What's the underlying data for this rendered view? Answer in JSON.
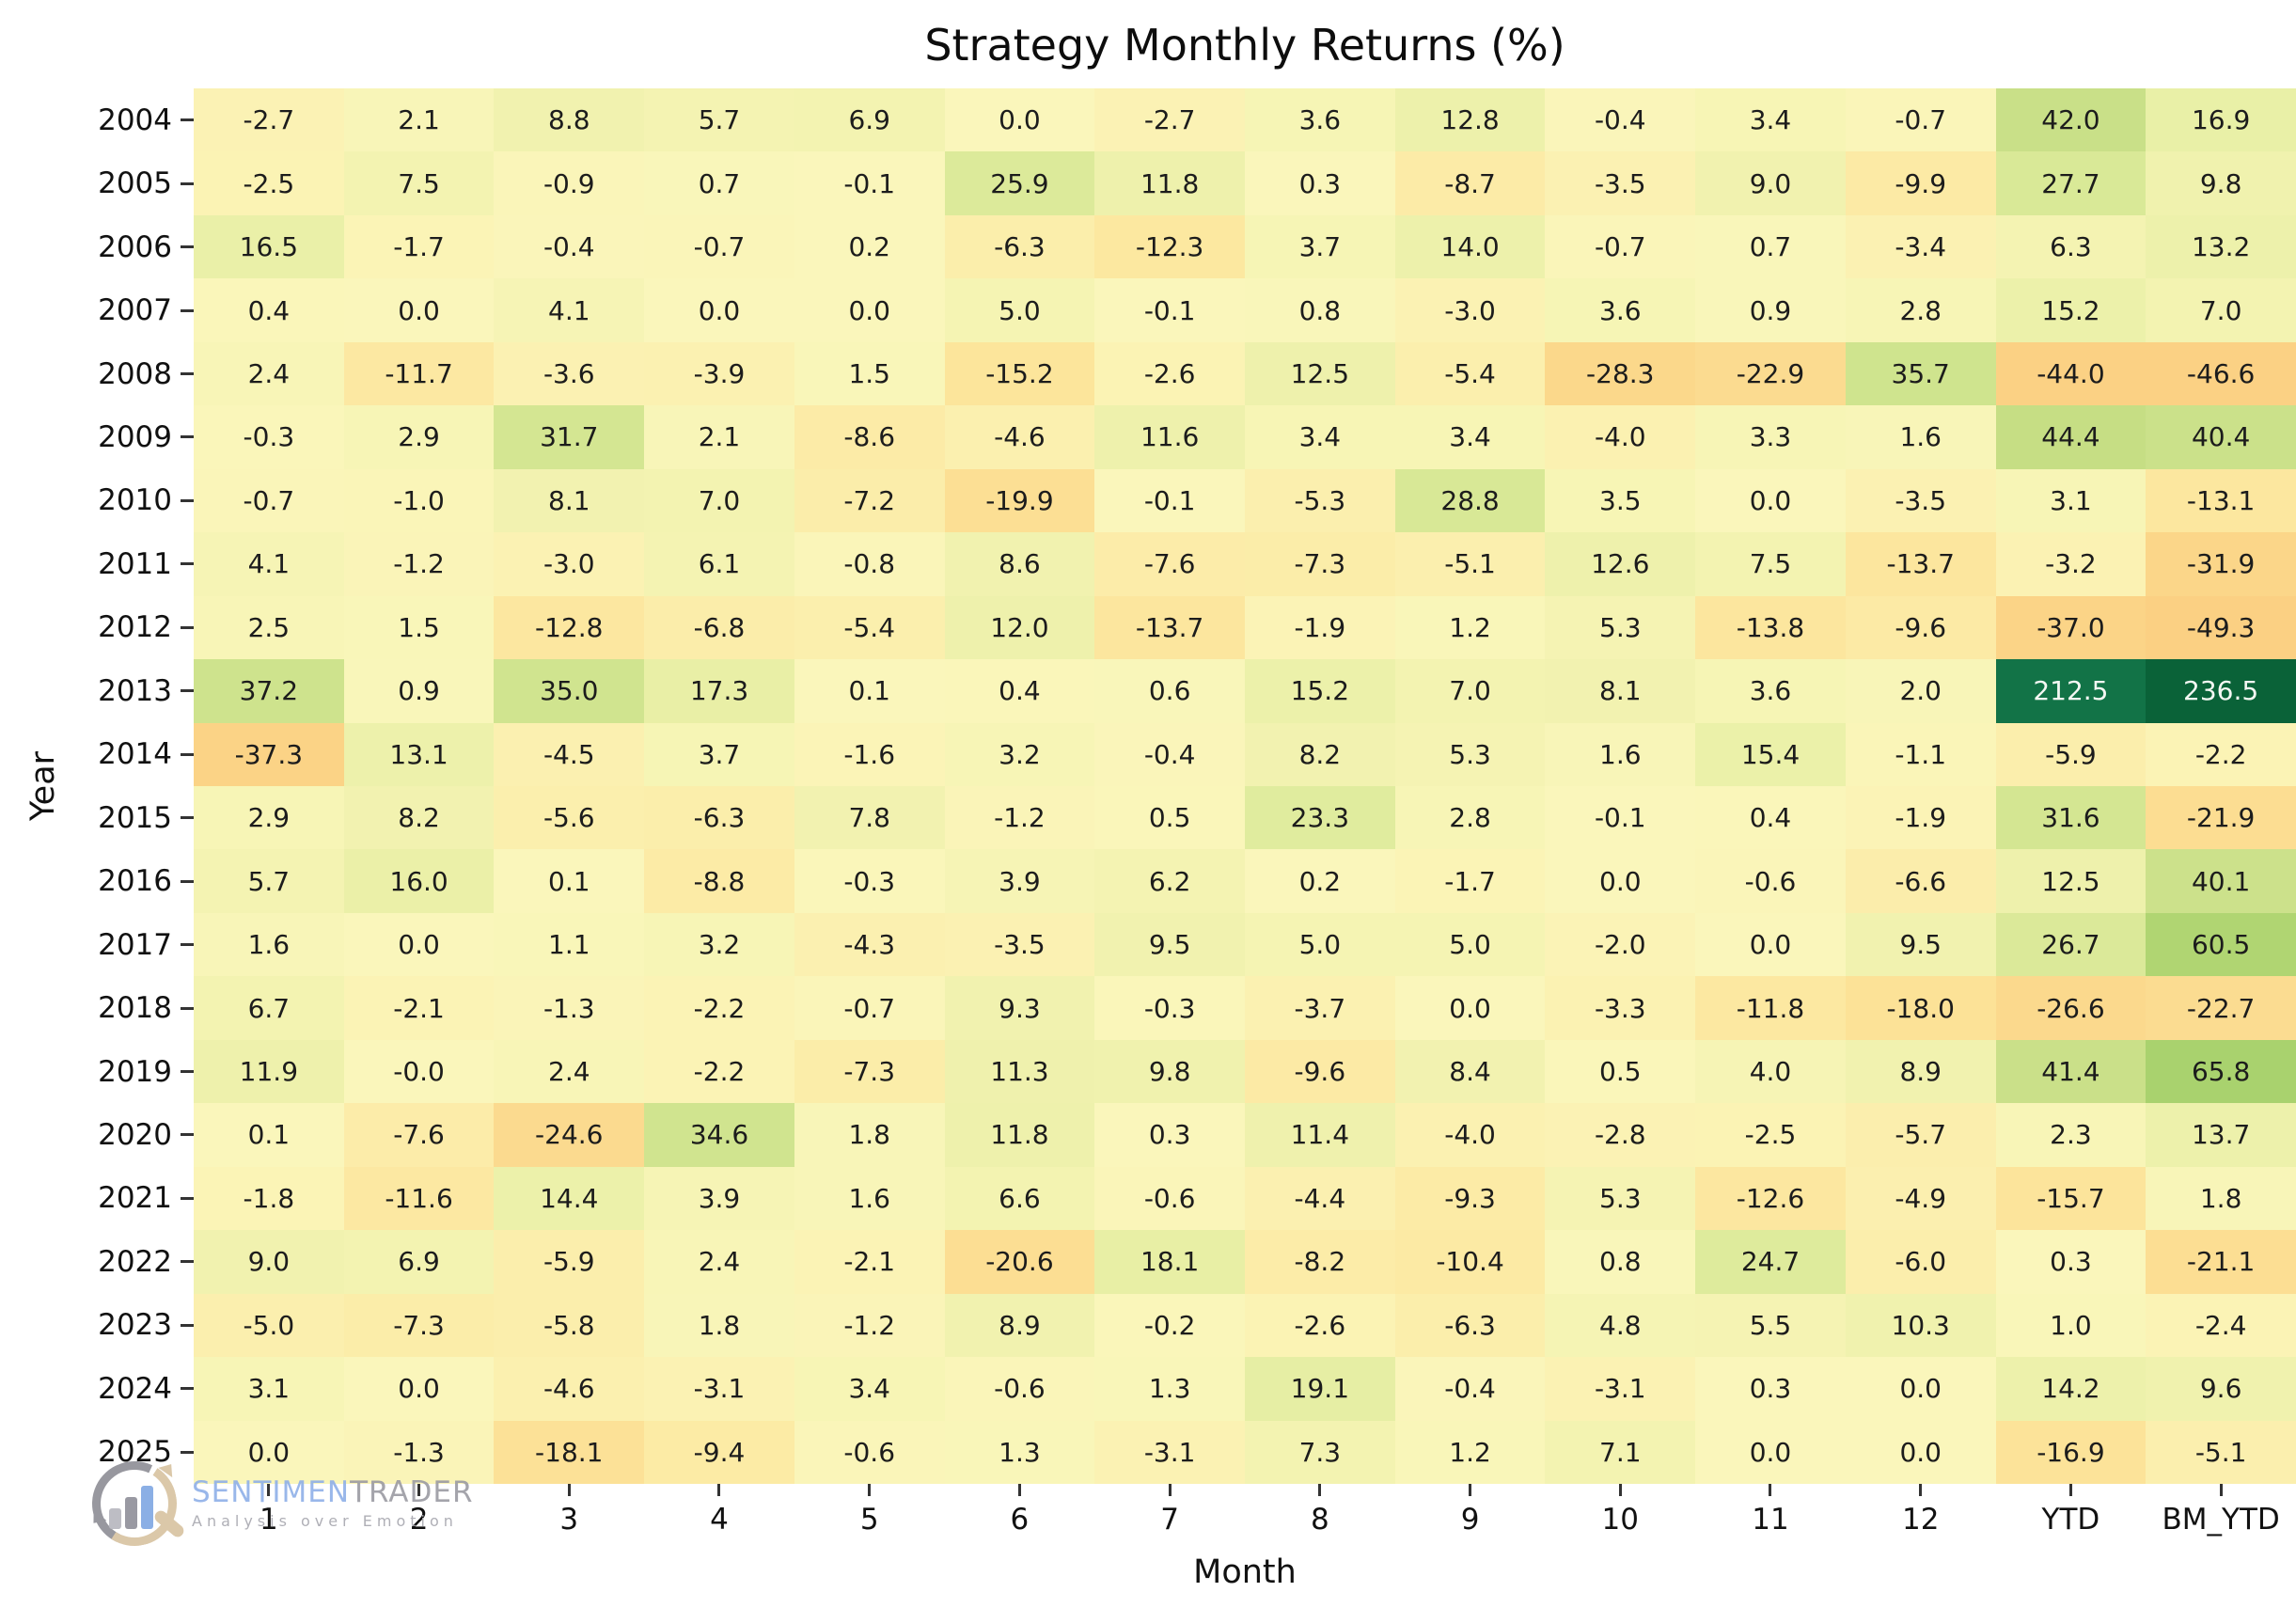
{
  "page": {
    "background": "#ffffff"
  },
  "chart_data": {
    "type": "heatmap",
    "title": "Strategy Monthly Returns (%)",
    "xlabel": "Month",
    "ylabel": "Year",
    "legend_position": "none",
    "grid": false,
    "columns": [
      "1",
      "2",
      "3",
      "4",
      "5",
      "6",
      "7",
      "8",
      "9",
      "10",
      "11",
      "12",
      "YTD",
      "BM_YTD"
    ],
    "years": [
      "2004",
      "2005",
      "2006",
      "2007",
      "2008",
      "2009",
      "2010",
      "2011",
      "2012",
      "2013",
      "2014",
      "2015",
      "2016",
      "2017",
      "2018",
      "2019",
      "2020",
      "2021",
      "2022",
      "2023",
      "2024",
      "2025"
    ],
    "values": [
      [
        "-2.7",
        "2.1",
        "8.8",
        "5.7",
        "6.9",
        "0.0",
        "-2.7",
        "3.6",
        "12.8",
        "-0.4",
        "3.4",
        "-0.7",
        "42.0",
        "16.9"
      ],
      [
        "-2.5",
        "7.5",
        "-0.9",
        "0.7",
        "-0.1",
        "25.9",
        "11.8",
        "0.3",
        "-8.7",
        "-3.5",
        "9.0",
        "-9.9",
        "27.7",
        "9.8"
      ],
      [
        "16.5",
        "-1.7",
        "-0.4",
        "-0.7",
        "0.2",
        "-6.3",
        "-12.3",
        "3.7",
        "14.0",
        "-0.7",
        "0.7",
        "-3.4",
        "6.3",
        "13.2"
      ],
      [
        "0.4",
        "0.0",
        "4.1",
        "0.0",
        "0.0",
        "5.0",
        "-0.1",
        "0.8",
        "-3.0",
        "3.6",
        "0.9",
        "2.8",
        "15.2",
        "7.0"
      ],
      [
        "2.4",
        "-11.7",
        "-3.6",
        "-3.9",
        "1.5",
        "-15.2",
        "-2.6",
        "12.5",
        "-5.4",
        "-28.3",
        "-22.9",
        "35.7",
        "-44.0",
        "-46.6"
      ],
      [
        "-0.3",
        "2.9",
        "31.7",
        "2.1",
        "-8.6",
        "-4.6",
        "11.6",
        "3.4",
        "3.4",
        "-4.0",
        "3.3",
        "1.6",
        "44.4",
        "40.4"
      ],
      [
        "-0.7",
        "-1.0",
        "8.1",
        "7.0",
        "-7.2",
        "-19.9",
        "-0.1",
        "-5.3",
        "28.8",
        "3.5",
        "0.0",
        "-3.5",
        "3.1",
        "-13.1"
      ],
      [
        "4.1",
        "-1.2",
        "-3.0",
        "6.1",
        "-0.8",
        "8.6",
        "-7.6",
        "-7.3",
        "-5.1",
        "12.6",
        "7.5",
        "-13.7",
        "-3.2",
        "-31.9"
      ],
      [
        "2.5",
        "1.5",
        "-12.8",
        "-6.8",
        "-5.4",
        "12.0",
        "-13.7",
        "-1.9",
        "1.2",
        "5.3",
        "-13.8",
        "-9.6",
        "-37.0",
        "-49.3"
      ],
      [
        "37.2",
        "0.9",
        "35.0",
        "17.3",
        "0.1",
        "0.4",
        "0.6",
        "15.2",
        "7.0",
        "8.1",
        "3.6",
        "2.0",
        "212.5",
        "236.5"
      ],
      [
        "-37.3",
        "13.1",
        "-4.5",
        "3.7",
        "-1.6",
        "3.2",
        "-0.4",
        "8.2",
        "5.3",
        "1.6",
        "15.4",
        "-1.1",
        "-5.9",
        "-2.2"
      ],
      [
        "2.9",
        "8.2",
        "-5.6",
        "-6.3",
        "7.8",
        "-1.2",
        "0.5",
        "23.3",
        "2.8",
        "-0.1",
        "0.4",
        "-1.9",
        "31.6",
        "-21.9"
      ],
      [
        "5.7",
        "16.0",
        "0.1",
        "-8.8",
        "-0.3",
        "3.9",
        "6.2",
        "0.2",
        "-1.7",
        "0.0",
        "-0.6",
        "-6.6",
        "12.5",
        "40.1"
      ],
      [
        "1.6",
        "0.0",
        "1.1",
        "3.2",
        "-4.3",
        "-3.5",
        "9.5",
        "5.0",
        "5.0",
        "-2.0",
        "0.0",
        "9.5",
        "26.7",
        "60.5"
      ],
      [
        "6.7",
        "-2.1",
        "-1.3",
        "-2.2",
        "-0.7",
        "9.3",
        "-0.3",
        "-3.7",
        "0.0",
        "-3.3",
        "-11.8",
        "-18.0",
        "-26.6",
        "-22.7"
      ],
      [
        "11.9",
        "-0.0",
        "2.4",
        "-2.2",
        "-7.3",
        "11.3",
        "9.8",
        "-9.6",
        "8.4",
        "0.5",
        "4.0",
        "8.9",
        "41.4",
        "65.8"
      ],
      [
        "0.1",
        "-7.6",
        "-24.6",
        "34.6",
        "1.8",
        "11.8",
        "0.3",
        "11.4",
        "-4.0",
        "-2.8",
        "-2.5",
        "-5.7",
        "2.3",
        "13.7"
      ],
      [
        "-1.8",
        "-11.6",
        "14.4",
        "3.9",
        "1.6",
        "6.6",
        "-0.6",
        "-4.4",
        "-9.3",
        "5.3",
        "-12.6",
        "-4.9",
        "-15.7",
        "1.8"
      ],
      [
        "9.0",
        "6.9",
        "-5.9",
        "2.4",
        "-2.1",
        "-20.6",
        "18.1",
        "-8.2",
        "-10.4",
        "0.8",
        "24.7",
        "-6.0",
        "0.3",
        "-21.1"
      ],
      [
        "-5.0",
        "-7.3",
        "-5.8",
        "1.8",
        "-1.2",
        "8.9",
        "-0.2",
        "-2.6",
        "-6.3",
        "4.8",
        "5.5",
        "10.3",
        "1.0",
        "-2.4"
      ],
      [
        "3.1",
        "0.0",
        "-4.6",
        "-3.1",
        "3.4",
        "-0.6",
        "1.3",
        "19.1",
        "-0.4",
        "-3.1",
        "0.3",
        "0.0",
        "14.2",
        "9.6"
      ],
      [
        "0.0",
        "-1.3",
        "-18.1",
        "-9.4",
        "-0.6",
        "1.3",
        "-3.1",
        "7.3",
        "1.2",
        "7.1",
        "0.0",
        "0.0",
        "-16.9",
        "-5.1"
      ]
    ],
    "colormap_stops": [
      [
        -50,
        "#fbd083"
      ],
      [
        -40,
        "#fbd285"
      ],
      [
        -30,
        "#fbd78a"
      ],
      [
        -24,
        "#fbda8f"
      ],
      [
        -20,
        "#fcdf94"
      ],
      [
        -16,
        "#fce49a"
      ],
      [
        -12,
        "#fce8a1"
      ],
      [
        -9,
        "#fceba6"
      ],
      [
        -6,
        "#fbeeac"
      ],
      [
        -3,
        "#fbf2b3"
      ],
      [
        0,
        "#faf6bb"
      ],
      [
        3,
        "#f7f5b6"
      ],
      [
        6,
        "#f4f3b2"
      ],
      [
        9,
        "#f1f2af"
      ],
      [
        12,
        "#eef1ac"
      ],
      [
        15,
        "#ecf1aa"
      ],
      [
        18,
        "#e8efa5"
      ],
      [
        22,
        "#e2eda0"
      ],
      [
        26,
        "#dcea9a"
      ],
      [
        30,
        "#d6e794"
      ],
      [
        35,
        "#d0e48f"
      ],
      [
        40,
        "#cce18b"
      ],
      [
        46,
        "#c4dd82"
      ],
      [
        55,
        "#b6d776"
      ],
      [
        66,
        "#a9d26e"
      ],
      [
        212.5,
        "#127347"
      ],
      [
        236.5,
        "#0a6238"
      ]
    ],
    "cell_text_dark": "#1c1c1c",
    "cell_text_light": "#f4f8f3"
  },
  "logo": {
    "brand_part1": "SENTIMEN",
    "brand_part2": "TRADER",
    "tagline": "Analysis over Emotion",
    "colors": {
      "part1": "#8fb0e8",
      "part2": "#9b9ba3",
      "tagline": "#a7a7af",
      "arc_gray": "#8d8d95",
      "arc_tan": "#d8c3a0",
      "bar_gray_light": "#b6b6be",
      "bar_gray": "#8f8f99",
      "bar_blue": "#7fa7e3"
    }
  }
}
